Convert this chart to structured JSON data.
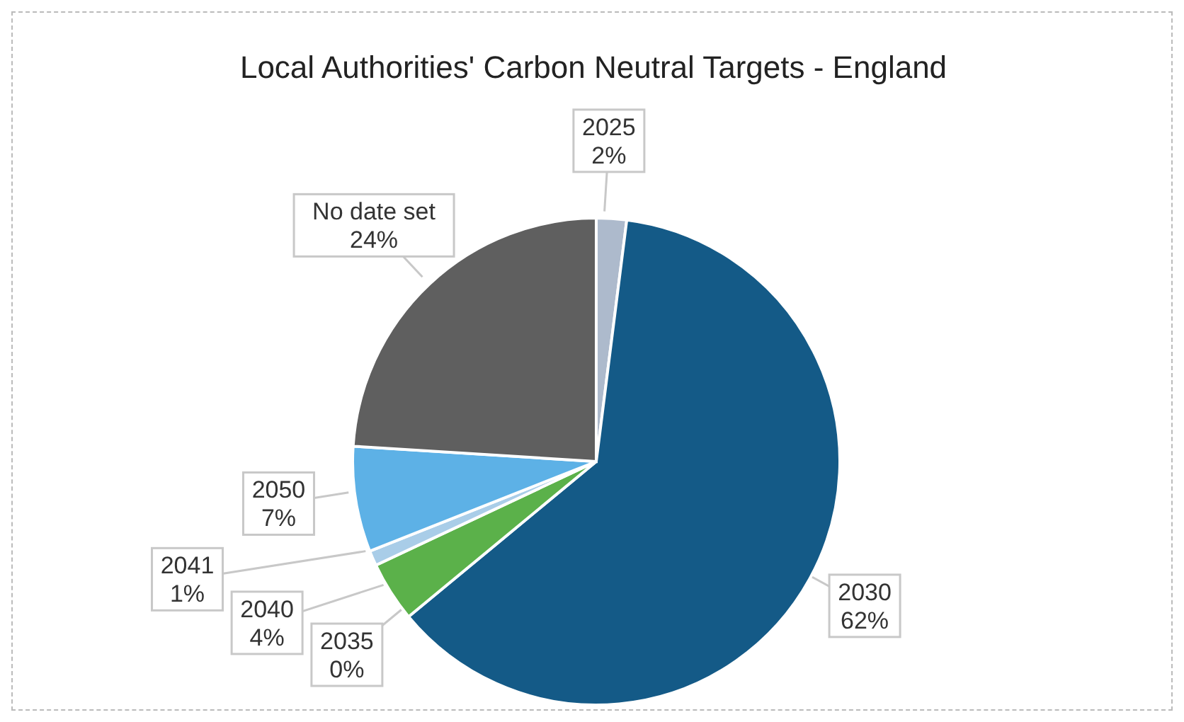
{
  "chart_data": {
    "type": "pie",
    "title": "Local Authorities' Carbon Neutral Targets - England",
    "categories": [
      "2025",
      "2030",
      "2035",
      "2040",
      "2041",
      "2050",
      "No date set"
    ],
    "values": [
      2,
      62,
      0,
      4,
      1,
      7,
      24
    ],
    "value_labels": [
      "2%",
      "62%",
      "0%",
      "4%",
      "1%",
      "7%",
      "24%"
    ],
    "colors": [
      "#adbacc",
      "#145a87",
      "#7f9f6f",
      "#5bb14a",
      "#a9cde8",
      "#5db1e6",
      "#5f5f5f"
    ],
    "legend": false
  }
}
